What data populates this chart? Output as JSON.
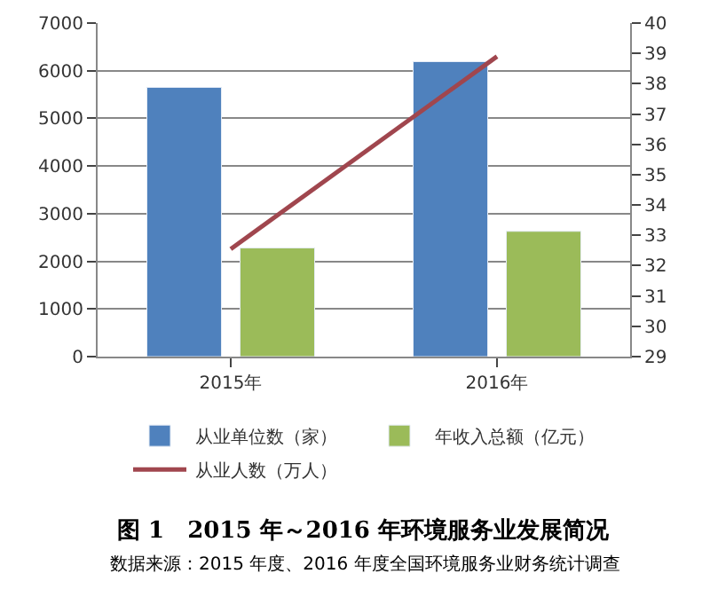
{
  "chart_data": {
    "type": "bar",
    "title": "图 1　2015 年～2016 年环境服务业发展简况",
    "categories": [
      "2015年",
      "2016年"
    ],
    "series": [
      {
        "name": "从业单位数（家）",
        "color": "#4f81bd",
        "values": [
          5650,
          6190
        ]
      },
      {
        "name": "年收入总额（亿元）",
        "color": "#9bbb59",
        "values": [
          2280,
          2630
        ]
      },
      {
        "name": "从业人数（万人）",
        "color": "#a0464e",
        "type": "line",
        "axis": "y2",
        "values": [
          32.55,
          38.9
        ]
      }
    ],
    "ylim": [
      0,
      7000
    ],
    "yticks": [
      0,
      1000,
      2000,
      3000,
      4000,
      5000,
      6000,
      7000
    ],
    "y2lim": [
      29,
      40
    ],
    "y2ticks": [
      29,
      30,
      31,
      32,
      33,
      34,
      35,
      36,
      37,
      38,
      39,
      40
    ],
    "grid": "y",
    "legend": "bottom",
    "marker": "none",
    "annotations": [
      "数据来源：2015 年度、2016 年度全国环境服务业财务统计调查"
    ]
  }
}
